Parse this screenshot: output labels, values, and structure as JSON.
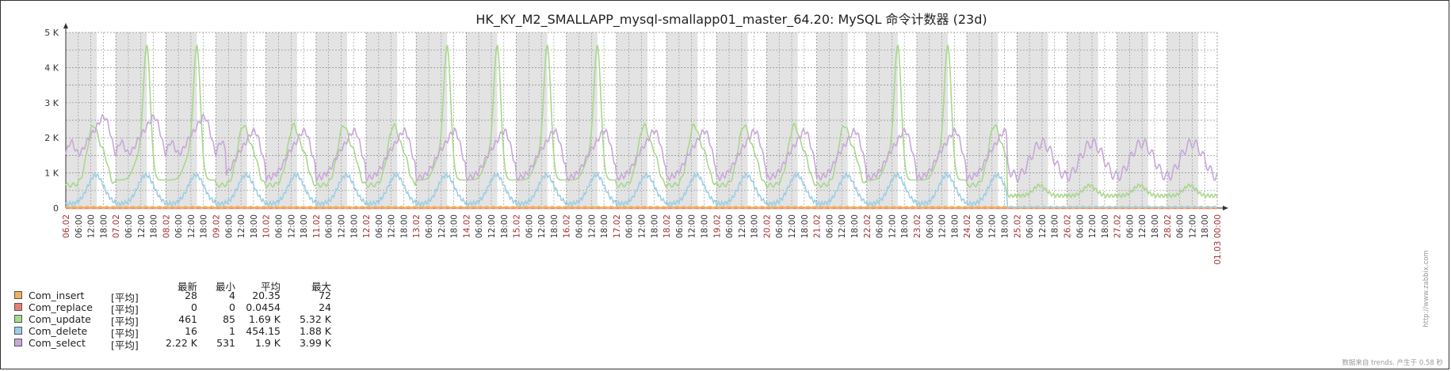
{
  "chart_data": {
    "type": "line",
    "title": "HK_KY_M2_SMALLAPP_mysql-smallapp01_master_64.20: MySQL 命令计数器 (23d)",
    "y_ticks": [
      "0",
      "1 K",
      "2 K",
      "3 K",
      "4 K",
      "5 K"
    ],
    "ylim": [
      0,
      5000
    ],
    "x_range_days": [
      0,
      23
    ],
    "grid": true,
    "day_labels": [
      "06.02",
      "07.02",
      "08.02",
      "09.02",
      "10.02",
      "11.02",
      "12.02",
      "13.02",
      "14.02",
      "15.02",
      "16.02",
      "17.02",
      "18.02",
      "19.02",
      "20.02",
      "21.02",
      "22.02",
      "23.02",
      "24.02",
      "25.02",
      "26.02",
      "27.02",
      "28.02",
      "01.03 00:00"
    ],
    "hour_labels": [
      "06:00",
      "12:00",
      "18:00"
    ],
    "series": [
      {
        "name": "Com_insert",
        "color": "#f0b060"
      },
      {
        "name": "Com_replace",
        "color": "#e88070"
      },
      {
        "name": "Com_update",
        "color": "#a8d88a"
      },
      {
        "name": "Com_delete",
        "color": "#9ccfe6"
      },
      {
        "name": "Com_select",
        "color": "#c8a8d8"
      }
    ]
  },
  "legend": {
    "headers": {
      "last": "最新",
      "min": "最小",
      "avg": "平均",
      "max": "最大"
    },
    "rows": [
      {
        "name": "Com_insert",
        "func": "[平均]",
        "last": "28",
        "min": "4",
        "avg": "20.35",
        "max": "72",
        "color": "#f0b060"
      },
      {
        "name": "Com_replace",
        "func": "[平均]",
        "last": "0",
        "min": "0",
        "avg": "0.0454",
        "max": "24",
        "color": "#e88070"
      },
      {
        "name": "Com_update",
        "func": "[平均]",
        "last": "461",
        "min": "85",
        "avg": "1.69 K",
        "max": "5.32 K",
        "color": "#a8d88a"
      },
      {
        "name": "Com_delete",
        "func": "[平均]",
        "last": "16",
        "min": "1",
        "avg": "454.15",
        "max": "1.88 K",
        "color": "#9ccfe6"
      },
      {
        "name": "Com_select",
        "func": "[平均]",
        "last": "2.22 K",
        "min": "531",
        "avg": "1.9 K",
        "max": "3.99 K",
        "color": "#c8a8d8"
      }
    ]
  },
  "footer": "数据来自 trends. 产生于 0.58 秒",
  "watermark": "http://www.zabbix.com"
}
